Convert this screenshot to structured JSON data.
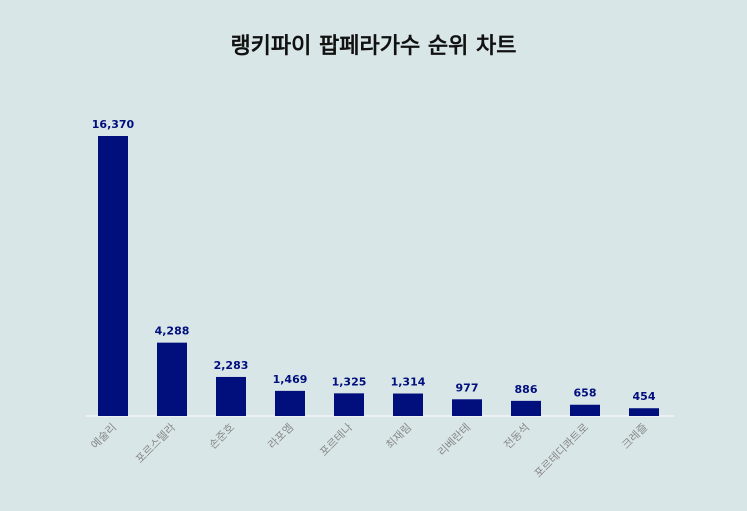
{
  "chart_data": {
    "type": "bar",
    "title": "랭키파이 팝페라가수 순위 차트",
    "categories": [
      "예술리",
      "포르스텔라",
      "손준호",
      "라포엠",
      "포르테나",
      "최재림",
      "리베란테",
      "전동석",
      "포르테디콰트로",
      "크레즐"
    ],
    "values": [
      16370,
      4288,
      2283,
      1469,
      1325,
      1314,
      977,
      886,
      658,
      454
    ],
    "value_labels": [
      "16,370",
      "4,288",
      "2,283",
      "1,469",
      "1,325",
      "1,314",
      "977",
      "886",
      "658",
      "454"
    ],
    "xlabel": "",
    "ylabel": "",
    "ylim": [
      0,
      16370
    ],
    "grid": false,
    "colors": {
      "bar": "#000f7c",
      "value_label": "#000f7c",
      "tick_label": "#888888",
      "baseline": "#ffffff",
      "background": "#d9e6e8"
    }
  }
}
